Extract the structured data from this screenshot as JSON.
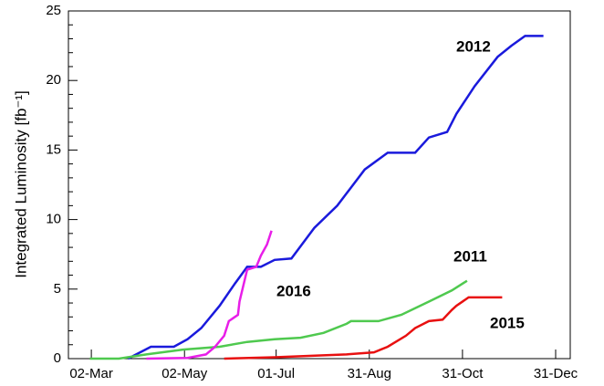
{
  "chart_data": {
    "type": "line",
    "y_label": "Integrated Luminosity [fb⁻¹]",
    "xlim": [
      "15-Feb",
      "31-Dec"
    ],
    "xticks": [
      "02-Mar",
      "02-May",
      "01-Jul",
      "31-Aug",
      "31-Oct",
      "31-Dec"
    ],
    "ylim": [
      0,
      25
    ],
    "yticks": [
      0,
      5,
      10,
      15,
      20,
      25
    ],
    "series": [
      {
        "name": "2012",
        "color": "#1a1adc",
        "x": [
          "26-Mar",
          "10-Apr",
          "25-Apr",
          "04-May",
          "13-May",
          "25-May",
          "04-Jun",
          "12-Jun",
          "21-Jun",
          "30-Jun",
          "11-Jul",
          "26-Jul",
          "10-Aug",
          "28-Aug",
          "12-Sep",
          "30-Sep",
          "09-Oct",
          "21-Oct",
          "27-Oct",
          "08-Nov",
          "23-Nov",
          "02-Dec",
          "11-Dec",
          "23-Dec"
        ],
        "values": [
          0,
          0.85,
          0.85,
          1.4,
          2.2,
          3.8,
          5.4,
          6.6,
          6.6,
          7.1,
          7.2,
          9.4,
          11,
          13.6,
          14.8,
          14.8,
          15.9,
          16.3,
          17.6,
          19.6,
          21.7,
          22.5,
          23.2,
          23.2
        ]
      },
      {
        "name": "2011",
        "color": "#4fc94f",
        "x": [
          "01-Mar",
          "20-Mar",
          "07-Apr",
          "01-May",
          "25-May",
          "12-Jun",
          "30-Jun",
          "17-Jul",
          "01-Aug",
          "16-Aug",
          "19-Aug",
          "06-Sep",
          "21-Sep",
          "09-Oct",
          "24-Oct",
          "03-Nov"
        ],
        "values": [
          0,
          0,
          0.3,
          0.65,
          0.85,
          1.2,
          1.4,
          1.5,
          1.85,
          2.5,
          2.7,
          2.7,
          3.15,
          4.1,
          4.9,
          5.6
        ]
      },
      {
        "name": "2015",
        "color": "#e81010",
        "x": [
          "28-May",
          "30-Jun",
          "16-Aug",
          "03-Sep",
          "12-Sep",
          "24-Sep",
          "30-Sep",
          "09-Oct",
          "18-Oct",
          "24-Oct",
          "27-Oct",
          "04-Nov",
          "26-Nov"
        ],
        "values": [
          0,
          0.1,
          0.3,
          0.45,
          0.85,
          1.65,
          2.2,
          2.7,
          2.8,
          3.5,
          3.8,
          4.4,
          4.4
        ]
      },
      {
        "name": "2016",
        "color": "#e81ee8",
        "x": [
          "07-Apr",
          "04-May",
          "16-May",
          "22-May",
          "28-May",
          "31-May",
          "06-Jun",
          "07-Jun",
          "12-Jun",
          "18-Jun",
          "21-Jun",
          "25-Jun",
          "28-Jun"
        ],
        "values": [
          0,
          0.05,
          0.3,
          0.85,
          1.65,
          2.7,
          3.15,
          4.1,
          6.4,
          6.6,
          7.4,
          8.2,
          9.2
        ]
      }
    ]
  }
}
